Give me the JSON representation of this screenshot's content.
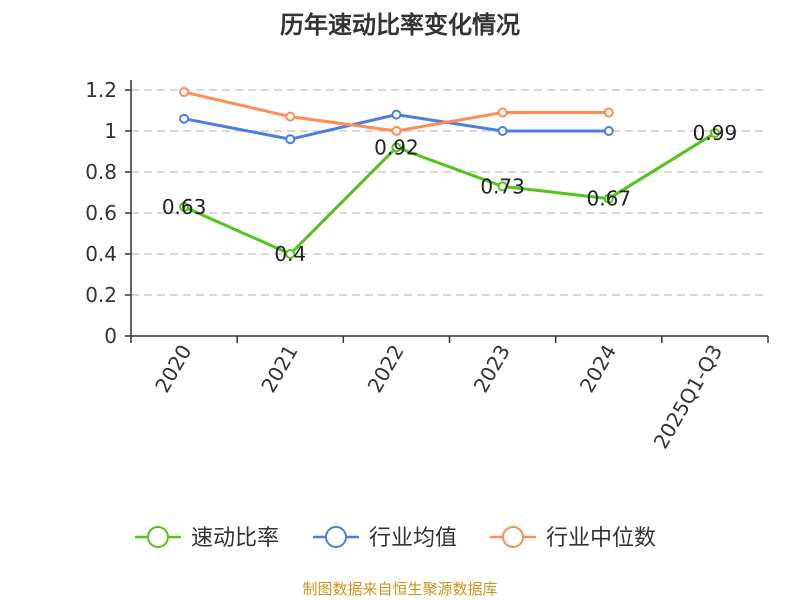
{
  "chart_data": {
    "type": "line",
    "title": "历年速动比率变化情况",
    "categories": [
      "2020",
      "2021",
      "2022",
      "2023",
      "2024",
      "2025Q1-Q3"
    ],
    "ylim": [
      0,
      1.2
    ],
    "yticks": [
      0,
      0.2,
      0.4,
      0.6,
      0.8,
      1,
      1.2
    ],
    "ytick_labels": [
      "0",
      "0.2",
      "0.4",
      "0.6",
      "0.8",
      "1",
      "1.2"
    ],
    "grid": true,
    "legend_position": "bottom",
    "series": [
      {
        "name": "速动比率",
        "color": "#52c41a",
        "values": [
          0.63,
          0.4,
          0.92,
          0.73,
          0.67,
          0.99
        ],
        "labels": [
          "0.63",
          "0.4",
          "0.92",
          "0.73",
          "0.67",
          "0.99"
        ]
      },
      {
        "name": "行业均值",
        "color": "#4a7fe0",
        "values": [
          1.06,
          0.96,
          1.08,
          1.0,
          1.0,
          null
        ]
      },
      {
        "name": "行业中位数",
        "color": "#ff8c55",
        "values": [
          1.19,
          1.07,
          1.0,
          1.09,
          1.09,
          null
        ]
      }
    ]
  },
  "footer": {
    "source": "制图数据来自恒生聚源数据库",
    "color": "#c8961e"
  }
}
